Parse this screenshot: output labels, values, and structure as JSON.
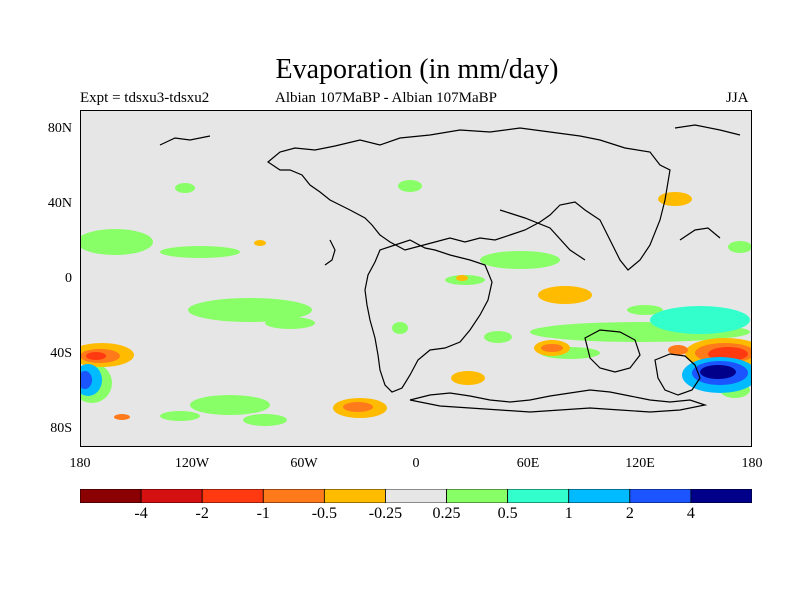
{
  "title": "Evaporation (in mm/day)",
  "experiment": "Expt = tdsxu3-tdsxu2",
  "period": "Albian   107MaBP - Albian   107MaBP",
  "season": "JJA",
  "lat_ticks": [
    "80N",
    "40N",
    "0",
    "40S",
    "80S"
  ],
  "lon_ticks": [
    "180",
    "120W",
    "60W",
    "0",
    "60E",
    "120E",
    "180"
  ],
  "colorbar": {
    "colors": [
      "#8b0000",
      "#d41010",
      "#ff3a10",
      "#ff7a1a",
      "#ffbb00",
      "#e6e6e6",
      "#88ff66",
      "#33ffcc",
      "#00bbff",
      "#1a55ff",
      "#00008b"
    ],
    "labels": [
      "-4",
      "-2",
      "-1",
      "-0.5",
      "-0.25",
      "0.25",
      "0.5",
      "1",
      "2",
      "4"
    ]
  },
  "colors": {
    "background": "#e6e6e6",
    "coastline": "#000000"
  }
}
